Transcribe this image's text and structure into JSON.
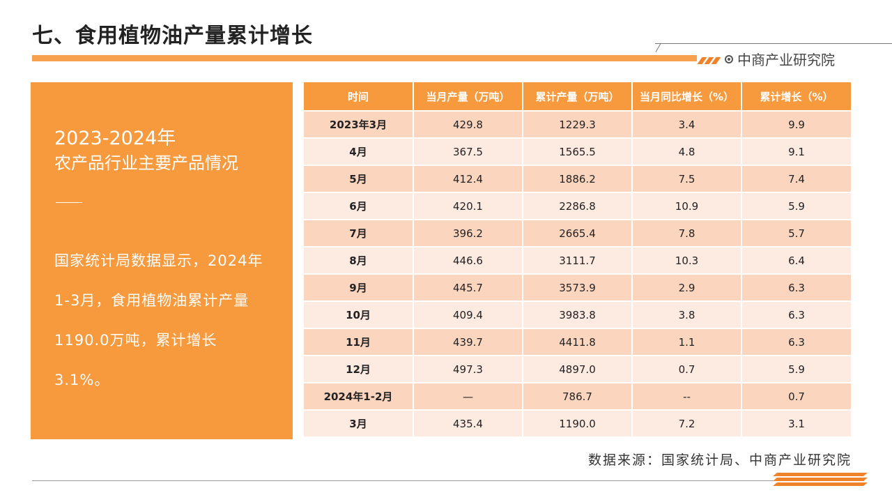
{
  "header": {
    "title": "七、食用植物油产量累计增长",
    "brand": "中商产业研究院",
    "brand_icon": "target-circle-icon",
    "accent_color": "#f7993d"
  },
  "panel": {
    "year": "2023-2024年",
    "subtitle": "农产品行业主要产品情况",
    "description": "国家统计局数据显示，2024年1-3月，食用植物油累计产量1190.0万吨，累计增长3.1%。"
  },
  "table": {
    "headers": [
      "时间",
      "当月产量（万吨）",
      "累计产量（万吨）",
      "当月同比增长（%）",
      "累计增长（%）"
    ],
    "rows": [
      [
        "2023年3月",
        "429.8",
        "1229.3",
        "3.4",
        "9.9"
      ],
      [
        "4月",
        "367.5",
        "1565.5",
        "4.8",
        "9.1"
      ],
      [
        "5月",
        "412.4",
        "1886.2",
        "7.5",
        "7.4"
      ],
      [
        "6月",
        "420.1",
        "2286.8",
        "10.9",
        "5.9"
      ],
      [
        "7月",
        "396.2",
        "2665.4",
        "7.8",
        "5.7"
      ],
      [
        "8月",
        "446.6",
        "3111.7",
        "10.3",
        "6.4"
      ],
      [
        "9月",
        "445.7",
        "3573.9",
        "2.9",
        "6.3"
      ],
      [
        "10月",
        "409.4",
        "3983.8",
        "3.8",
        "6.3"
      ],
      [
        "11月",
        "439.7",
        "4411.8",
        "1.1",
        "6.3"
      ],
      [
        "12月",
        "497.3",
        "4897.0",
        "0.7",
        "5.9"
      ],
      [
        "2024年1-2月",
        "—",
        "786.7",
        "--",
        "0.7"
      ],
      [
        "3月",
        "435.4",
        "1190.0",
        "7.2",
        "3.1"
      ]
    ]
  },
  "footer": {
    "source": "数据来源：国家统计局、中商产业研究院"
  }
}
